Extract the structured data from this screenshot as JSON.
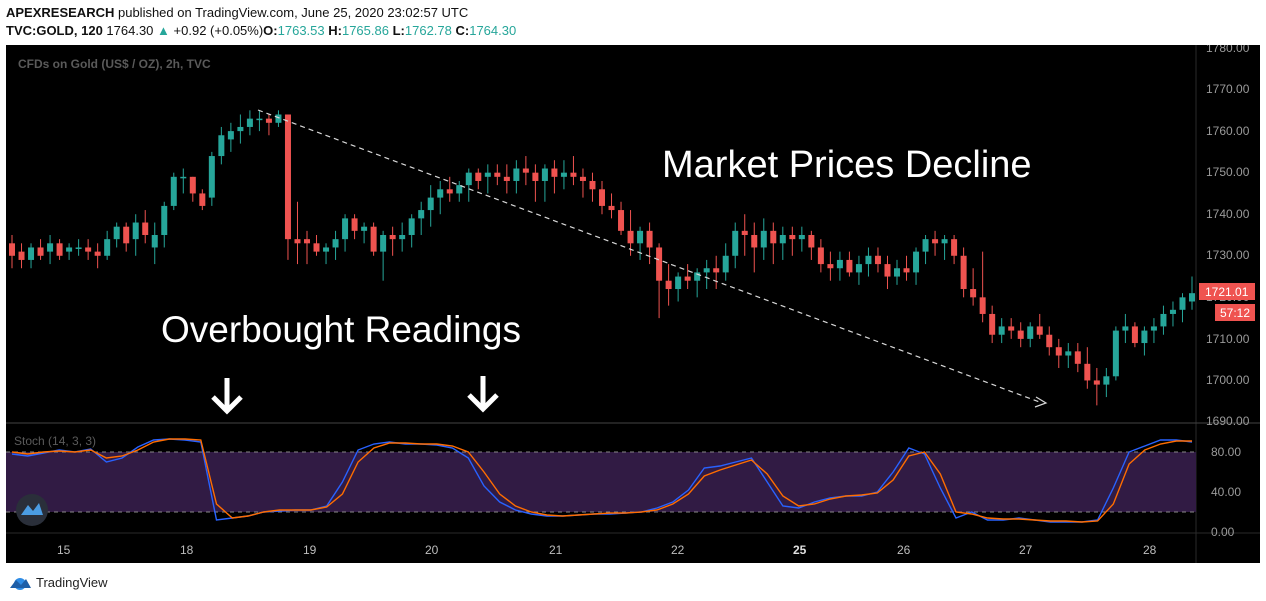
{
  "header": {
    "author": "APEXRESEARCH",
    "published_text": "published on TradingView.com, June 25, 2020 23:02:57 UTC",
    "symbol": "TVC:GOLD, 120",
    "last": "1764.30",
    "change_arrow": "▲",
    "change": "+0.92 (+0.05%)",
    "o_label": "O:",
    "o": "1763.53",
    "h_label": "H:",
    "h": "1765.86",
    "l_label": "L:",
    "l": "1762.78",
    "c_label": "C:",
    "c": "1764.30"
  },
  "chart": {
    "instrument_label": "CFDs on Gold (US$ / OZ), 2h, TVC",
    "annotation_right": "Market Prices Decline",
    "annotation_left": "Overbought Readings",
    "price_axis": [
      "1780.00",
      "1770.00",
      "1760.00",
      "1750.00",
      "1740.00",
      "1730.00",
      "1720.00",
      "1710.00",
      "1700.00",
      "1690.00"
    ],
    "price_badge": "1721.01",
    "timer_badge": "57:12",
    "stoch_label": "Stoch (14, 3, 3)",
    "stoch_axis": [
      "80.00",
      "40.00",
      "0.00"
    ],
    "time_axis": [
      "15",
      "18",
      "19",
      "20",
      "21",
      "22",
      "25",
      "26",
      "27",
      "28"
    ]
  },
  "colors": {
    "up": "#26a69a",
    "down": "#ef5350",
    "stoch_k": "#2962ff",
    "stoch_d": "#ff6d00",
    "stoch_band": "#311b44"
  },
  "footer": {
    "brand": "TradingView"
  },
  "chart_data": {
    "type": "candlestick",
    "ylim": [
      1690,
      1780
    ],
    "candles": [
      [
        1733,
        1735,
        1727,
        1730
      ],
      [
        1731,
        1733,
        1727,
        1729
      ],
      [
        1729,
        1733,
        1727,
        1732
      ],
      [
        1732,
        1734,
        1729,
        1730
      ],
      [
        1731,
        1735,
        1728,
        1733
      ],
      [
        1733,
        1734,
        1729,
        1730
      ],
      [
        1731,
        1733,
        1729,
        1732
      ],
      [
        1732,
        1734,
        1730,
        1732
      ],
      [
        1732,
        1734,
        1729,
        1731
      ],
      [
        1731,
        1733,
        1727,
        1730
      ],
      [
        1730,
        1736,
        1729,
        1734
      ],
      [
        1734,
        1738,
        1732,
        1737
      ],
      [
        1737,
        1738,
        1731,
        1733
      ],
      [
        1734,
        1740,
        1730,
        1738
      ],
      [
        1738,
        1741,
        1733,
        1735
      ],
      [
        1732,
        1738,
        1728,
        1735
      ],
      [
        1735,
        1743,
        1732,
        1742
      ],
      [
        1742,
        1750,
        1741,
        1749
      ],
      [
        1749,
        1751,
        1745,
        1749
      ],
      [
        1749,
        1749,
        1743,
        1745
      ],
      [
        1745,
        1746,
        1741,
        1742
      ],
      [
        1744,
        1755,
        1742,
        1754
      ],
      [
        1754,
        1761,
        1752,
        1759
      ],
      [
        1758,
        1762,
        1755,
        1760
      ],
      [
        1760,
        1764,
        1757,
        1761
      ],
      [
        1761,
        1765,
        1759,
        1763
      ],
      [
        1763,
        1765,
        1760,
        1763
      ],
      [
        1763,
        1764,
        1759,
        1762
      ],
      [
        1762,
        1765,
        1761,
        1764
      ],
      [
        1764,
        1764,
        1729,
        1734
      ],
      [
        1734,
        1743,
        1728,
        1733
      ],
      [
        1734,
        1736,
        1728,
        1733
      ],
      [
        1733,
        1735,
        1730,
        1731
      ],
      [
        1731,
        1733,
        1728,
        1732
      ],
      [
        1732,
        1736,
        1729,
        1734
      ],
      [
        1734,
        1740,
        1731,
        1739
      ],
      [
        1739,
        1740,
        1734,
        1736
      ],
      [
        1736,
        1738,
        1733,
        1737
      ],
      [
        1737,
        1738,
        1730,
        1731
      ],
      [
        1731,
        1736,
        1724,
        1735
      ],
      [
        1735,
        1737,
        1730,
        1734
      ],
      [
        1734,
        1738,
        1731,
        1735
      ],
      [
        1735,
        1740,
        1732,
        1739
      ],
      [
        1739,
        1743,
        1735,
        1741
      ],
      [
        1741,
        1747,
        1737,
        1744
      ],
      [
        1744,
        1748,
        1740,
        1746
      ],
      [
        1746,
        1749,
        1743,
        1745
      ],
      [
        1745,
        1748,
        1743,
        1747
      ],
      [
        1747,
        1751,
        1743,
        1750
      ],
      [
        1750,
        1751,
        1746,
        1748
      ],
      [
        1749,
        1752,
        1745,
        1750
      ],
      [
        1750,
        1752,
        1747,
        1749
      ],
      [
        1749,
        1752,
        1745,
        1748
      ],
      [
        1748,
        1753,
        1745,
        1751
      ],
      [
        1751,
        1754,
        1747,
        1750
      ],
      [
        1750,
        1752,
        1743,
        1748
      ],
      [
        1748,
        1752,
        1743,
        1751
      ],
      [
        1751,
        1753,
        1745,
        1749
      ],
      [
        1749,
        1753,
        1746,
        1750
      ],
      [
        1750,
        1754,
        1747,
        1749
      ],
      [
        1749,
        1751,
        1744,
        1748
      ],
      [
        1748,
        1750,
        1743,
        1746
      ],
      [
        1746,
        1748,
        1740,
        1742
      ],
      [
        1742,
        1745,
        1739,
        1741
      ],
      [
        1741,
        1743,
        1735,
        1736
      ],
      [
        1736,
        1741,
        1730,
        1733
      ],
      [
        1733,
        1737,
        1729,
        1736
      ],
      [
        1736,
        1738,
        1728,
        1732
      ],
      [
        1732,
        1733,
        1715,
        1724
      ],
      [
        1724,
        1728,
        1718,
        1722
      ],
      [
        1722,
        1726,
        1719,
        1725
      ],
      [
        1725,
        1728,
        1722,
        1724
      ],
      [
        1724,
        1727,
        1720,
        1726
      ],
      [
        1726,
        1729,
        1722,
        1727
      ],
      [
        1727,
        1730,
        1722,
        1726
      ],
      [
        1726,
        1733,
        1724,
        1730
      ],
      [
        1730,
        1738,
        1727,
        1736
      ],
      [
        1736,
        1740,
        1730,
        1735
      ],
      [
        1735,
        1738,
        1726,
        1732
      ],
      [
        1732,
        1739,
        1729,
        1736
      ],
      [
        1736,
        1738,
        1728,
        1733
      ],
      [
        1733,
        1737,
        1729,
        1735
      ],
      [
        1735,
        1737,
        1730,
        1734
      ],
      [
        1734,
        1737,
        1731,
        1735
      ],
      [
        1735,
        1736,
        1729,
        1732
      ],
      [
        1732,
        1734,
        1726,
        1728
      ],
      [
        1728,
        1731,
        1724,
        1727
      ],
      [
        1727,
        1731,
        1724,
        1729
      ],
      [
        1729,
        1731,
        1725,
        1726
      ],
      [
        1726,
        1730,
        1723,
        1728
      ],
      [
        1728,
        1732,
        1725,
        1730
      ],
      [
        1730,
        1732,
        1726,
        1728
      ],
      [
        1728,
        1730,
        1722,
        1725
      ],
      [
        1725,
        1729,
        1723,
        1727
      ],
      [
        1727,
        1730,
        1724,
        1726
      ],
      [
        1726,
        1732,
        1723,
        1731
      ],
      [
        1731,
        1735,
        1728,
        1734
      ],
      [
        1734,
        1736,
        1730,
        1733
      ],
      [
        1733,
        1735,
        1729,
        1734
      ],
      [
        1734,
        1735,
        1728,
        1730
      ],
      [
        1730,
        1732,
        1720,
        1722
      ],
      [
        1722,
        1727,
        1718,
        1720
      ],
      [
        1720,
        1731,
        1714,
        1716
      ],
      [
        1716,
        1718,
        1709,
        1711
      ],
      [
        1711,
        1715,
        1709,
        1713
      ],
      [
        1713,
        1715,
        1710,
        1712
      ],
      [
        1712,
        1714,
        1708,
        1710
      ],
      [
        1710,
        1714,
        1708,
        1713
      ],
      [
        1713,
        1716,
        1710,
        1711
      ],
      [
        1711,
        1713,
        1706,
        1708
      ],
      [
        1708,
        1710,
        1703,
        1706
      ],
      [
        1706,
        1709,
        1703,
        1707
      ],
      [
        1707,
        1709,
        1702,
        1704
      ],
      [
        1704,
        1708,
        1698,
        1700
      ],
      [
        1700,
        1703,
        1694,
        1699
      ],
      [
        1699,
        1703,
        1696,
        1701
      ],
      [
        1701,
        1713,
        1700,
        1712
      ],
      [
        1712,
        1716,
        1709,
        1713
      ],
      [
        1713,
        1714,
        1708,
        1709
      ],
      [
        1709,
        1713,
        1706,
        1712
      ],
      [
        1712,
        1715,
        1709,
        1713
      ],
      [
        1713,
        1718,
        1711,
        1716
      ],
      [
        1716,
        1719,
        1713,
        1717
      ],
      [
        1717,
        1721,
        1714,
        1720
      ],
      [
        1719,
        1725,
        1717,
        1721
      ]
    ],
    "stoch_k": [
      78,
      76,
      79,
      82,
      80,
      83,
      70,
      74,
      85,
      92,
      93,
      92,
      90,
      12,
      14,
      16,
      20,
      21,
      22,
      22,
      26,
      50,
      82,
      88,
      90,
      88,
      88,
      87,
      84,
      74,
      46,
      30,
      22,
      18,
      16,
      16,
      17,
      18,
      18,
      19,
      20,
      24,
      30,
      42,
      64,
      66,
      70,
      74,
      50,
      26,
      24,
      30,
      34,
      36,
      36,
      40,
      60,
      84,
      78,
      44,
      14,
      20,
      12,
      12,
      14,
      12,
      10,
      10,
      10,
      12,
      44,
      80,
      86,
      92,
      92,
      90
    ],
    "stoch_d": [
      80,
      78,
      80,
      81,
      80,
      82,
      74,
      76,
      82,
      90,
      93,
      93,
      92,
      28,
      14,
      16,
      20,
      22,
      22,
      22,
      25,
      38,
      70,
      84,
      89,
      89,
      88,
      88,
      86,
      80,
      60,
      38,
      26,
      20,
      17,
      16,
      17,
      18,
      19,
      19,
      20,
      22,
      28,
      38,
      56,
      62,
      67,
      72,
      58,
      36,
      26,
      28,
      33,
      36,
      37,
      39,
      52,
      76,
      80,
      58,
      20,
      18,
      14,
      13,
      13,
      12,
      11,
      11,
      10,
      11,
      28,
      68,
      82,
      88,
      91,
      91
    ]
  }
}
